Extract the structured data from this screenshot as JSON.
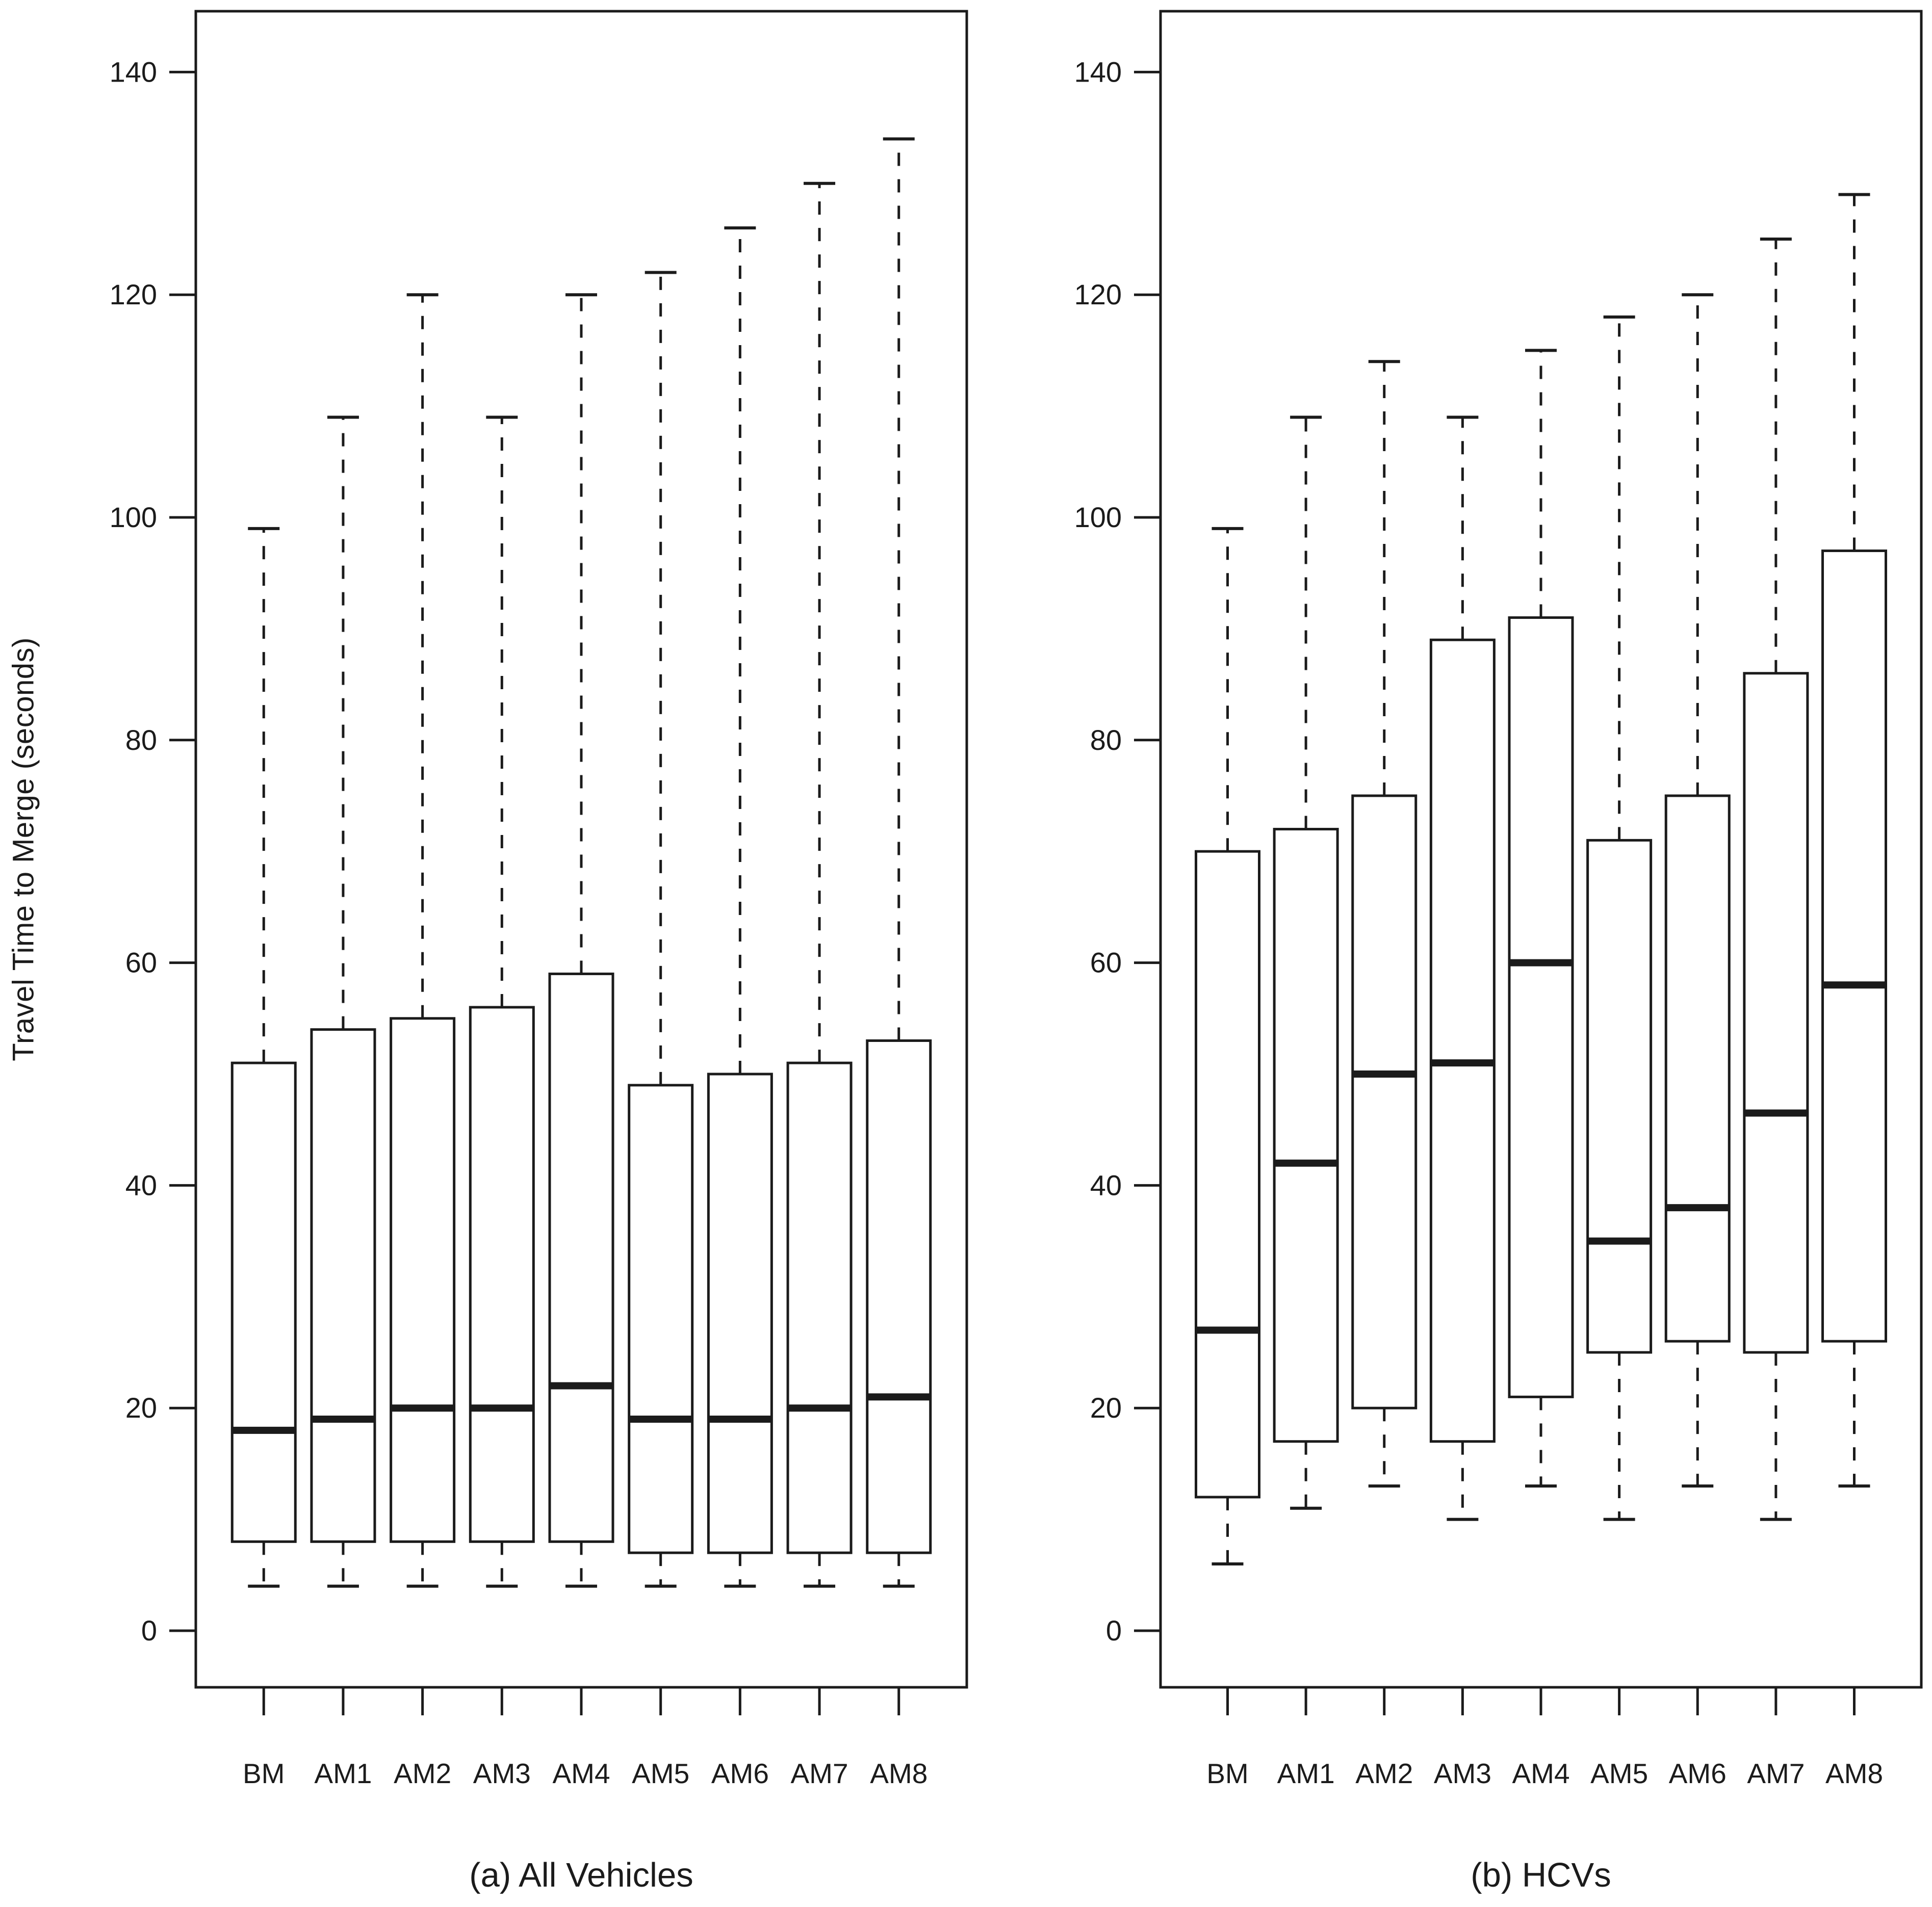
{
  "figure": {
    "y_axis_title": "Travel Time to Merge (seconds)",
    "panel_a_caption": "(a) All Vehicles",
    "panel_b_caption": "(b) HCVs",
    "line_color": "#1b1b1b",
    "background_color": "#ffffff"
  },
  "chart_data": [
    {
      "type": "boxplot",
      "title": "(a) All Vehicles",
      "xlabel": "",
      "ylabel": "Travel Time to Merge (seconds)",
      "categories": [
        "BM",
        "AM1",
        "AM2",
        "AM3",
        "AM4",
        "AM5",
        "AM6",
        "AM7",
        "AM8"
      ],
      "y_ticks": [
        0,
        20,
        40,
        60,
        80,
        100,
        120,
        140
      ],
      "ylim": [
        -6,
        146
      ],
      "grid": false,
      "legend": false,
      "whisker_style": "dashed",
      "series": [
        {
          "name": "BM",
          "whisker_low": 4,
          "q1": 8,
          "median": 18,
          "q3": 51,
          "whisker_high": 99
        },
        {
          "name": "AM1",
          "whisker_low": 4,
          "q1": 8,
          "median": 19,
          "q3": 54,
          "whisker_high": 109
        },
        {
          "name": "AM2",
          "whisker_low": 4,
          "q1": 8,
          "median": 20,
          "q3": 55,
          "whisker_high": 120
        },
        {
          "name": "AM3",
          "whisker_low": 4,
          "q1": 8,
          "median": 20,
          "q3": 56,
          "whisker_high": 109
        },
        {
          "name": "AM4",
          "whisker_low": 4,
          "q1": 8,
          "median": 22,
          "q3": 59,
          "whisker_high": 120
        },
        {
          "name": "AM5",
          "whisker_low": 4,
          "q1": 7,
          "median": 19,
          "q3": 49,
          "whisker_high": 122
        },
        {
          "name": "AM6",
          "whisker_low": 4,
          "q1": 7,
          "median": 19,
          "q3": 50,
          "whisker_high": 126
        },
        {
          "name": "AM7",
          "whisker_low": 4,
          "q1": 7,
          "median": 20,
          "q3": 51,
          "whisker_high": 130
        },
        {
          "name": "AM8",
          "whisker_low": 4,
          "q1": 7,
          "median": 21,
          "q3": 53,
          "whisker_high": 134
        }
      ]
    },
    {
      "type": "boxplot",
      "title": "(b) HCVs",
      "xlabel": "",
      "ylabel": "Travel Time to Merge (seconds)",
      "categories": [
        "BM",
        "AM1",
        "AM2",
        "AM3",
        "AM4",
        "AM5",
        "AM6",
        "AM7",
        "AM8"
      ],
      "y_ticks": [
        0,
        20,
        40,
        60,
        80,
        100,
        120,
        140
      ],
      "ylim": [
        -6,
        146
      ],
      "grid": false,
      "legend": false,
      "whisker_style": "dashed",
      "series": [
        {
          "name": "BM",
          "whisker_low": 6,
          "q1": 12,
          "median": 27,
          "q3": 70,
          "whisker_high": 99
        },
        {
          "name": "AM1",
          "whisker_low": 11,
          "q1": 17,
          "median": 42,
          "q3": 72,
          "whisker_high": 109
        },
        {
          "name": "AM2",
          "whisker_low": 13,
          "q1": 20,
          "median": 50,
          "q3": 75,
          "whisker_high": 114
        },
        {
          "name": "AM3",
          "whisker_low": 10,
          "q1": 17,
          "median": 51,
          "q3": 89,
          "whisker_high": 109
        },
        {
          "name": "AM4",
          "whisker_low": 13,
          "q1": 21,
          "median": 60,
          "q3": 91,
          "whisker_high": 115
        },
        {
          "name": "AM5",
          "whisker_low": 10,
          "q1": 25,
          "median": 35,
          "q3": 71,
          "whisker_high": 118
        },
        {
          "name": "AM6",
          "whisker_low": 13,
          "q1": 26,
          "median": 38,
          "q3": 75,
          "whisker_high": 120
        },
        {
          "name": "AM7",
          "whisker_low": 10,
          "q1": 25,
          "median": 46.5,
          "q3": 86,
          "whisker_high": 125
        },
        {
          "name": "AM8",
          "whisker_low": 13,
          "q1": 26,
          "median": 58,
          "q3": 97,
          "whisker_high": 129
        }
      ]
    }
  ]
}
